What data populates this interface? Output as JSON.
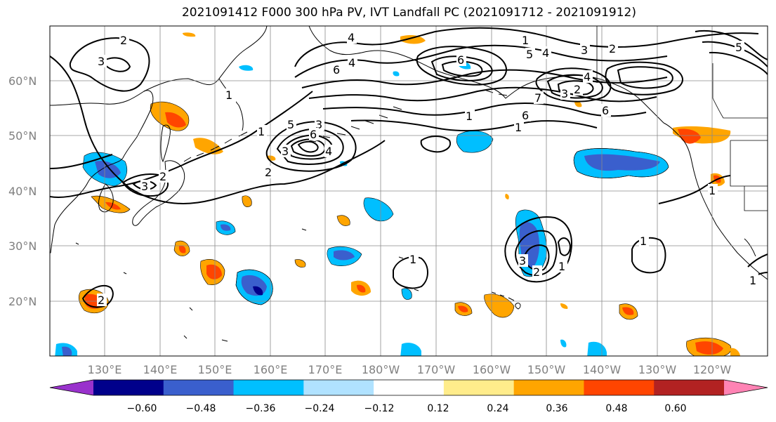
{
  "title": "2021091412 F000 300 hPa PV, IVT Landfall PC (2021091712 - 2021091912)",
  "lat_labels": [
    "60°N",
    "50°N",
    "40°N",
    "30°N",
    "20°N"
  ],
  "lon_labels": [
    "130°E",
    "140°E",
    "150°E",
    "160°E",
    "170°E",
    "180°W",
    "170°W",
    "160°W",
    "150°W",
    "140°W",
    "130°W",
    "120°W"
  ],
  "colorbar": {
    "colors": [
      "#9932cc",
      "#00008b",
      "#3a5fcd",
      "#00bfff",
      "#b0e2ff",
      "#ffffff",
      "#ffec8b",
      "#ffa500",
      "#ff4500",
      "#b22222",
      "#ff83b4"
    ],
    "tick_labels": [
      "−0.60",
      "−0.48",
      "−0.36",
      "−0.24",
      "−0.12",
      "0.12",
      "0.24",
      "0.36",
      "0.48",
      "0.60"
    ]
  },
  "contour_labels": [
    "2",
    "3",
    "1",
    "4",
    "4",
    "6",
    "1",
    "1",
    "5",
    "3",
    "4",
    "2",
    "5",
    "6",
    "6",
    "3",
    "2",
    "4",
    "6",
    "7",
    "1",
    "2",
    "3",
    "5",
    "1",
    "3",
    "6",
    "4",
    "2",
    "1",
    "3",
    "1",
    "1",
    "2",
    "3",
    "1",
    "2",
    "1",
    "1"
  ]
}
